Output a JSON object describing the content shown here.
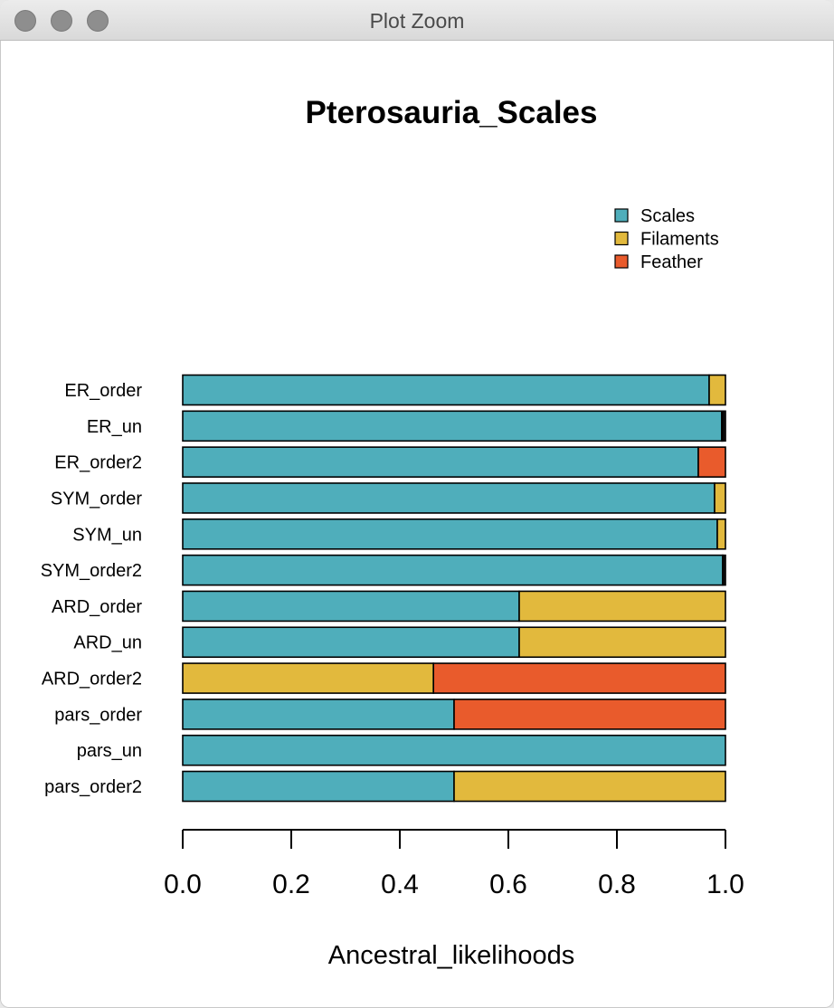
{
  "window": {
    "title": "Plot Zoom",
    "buttons": [
      "close",
      "minimize",
      "zoom"
    ]
  },
  "colors": {
    "Scales": "#4FAEBB",
    "Filaments": "#E2B93D",
    "Feather": "#E95B2C",
    "Other": "#111111"
  },
  "chart_data": {
    "type": "bar",
    "orientation": "horizontal",
    "stacked": true,
    "title": "Pterosauria_Scales",
    "xlabel": "Ancestral_likelihoods",
    "ylabel": "",
    "xlim": [
      0,
      1
    ],
    "xticks": [
      "0.0",
      "0.2",
      "0.4",
      "0.6",
      "0.8",
      "1.0"
    ],
    "legend_position": "top-right",
    "categories": [
      "ER_order",
      "ER_un",
      "ER_order2",
      "SYM_order",
      "SYM_un",
      "SYM_order2",
      "ARD_order",
      "ARD_un",
      "ARD_order2",
      "pars_order",
      "pars_un",
      "pars_order2"
    ],
    "series": [
      {
        "name": "Scales",
        "values": [
          0.97,
          0.993,
          0.95,
          0.98,
          0.985,
          0.995,
          0.62,
          0.62,
          0.0,
          0.5,
          1.0,
          0.5
        ]
      },
      {
        "name": "Filaments",
        "values": [
          0.03,
          0.002,
          0.0,
          0.02,
          0.015,
          0.0,
          0.38,
          0.38,
          0.462,
          0.0,
          0.0,
          0.5
        ]
      },
      {
        "name": "Feather",
        "values": [
          0.0,
          0.0,
          0.05,
          0.0,
          0.0,
          0.0,
          0.0,
          0.0,
          0.538,
          0.5,
          0.0,
          0.0
        ]
      },
      {
        "values": [
          0.0,
          0.005,
          0.0,
          0.0,
          0.0,
          0.005,
          0.0,
          0.0,
          0.0,
          0.0,
          0.0,
          0.0
        ]
      }
    ]
  }
}
